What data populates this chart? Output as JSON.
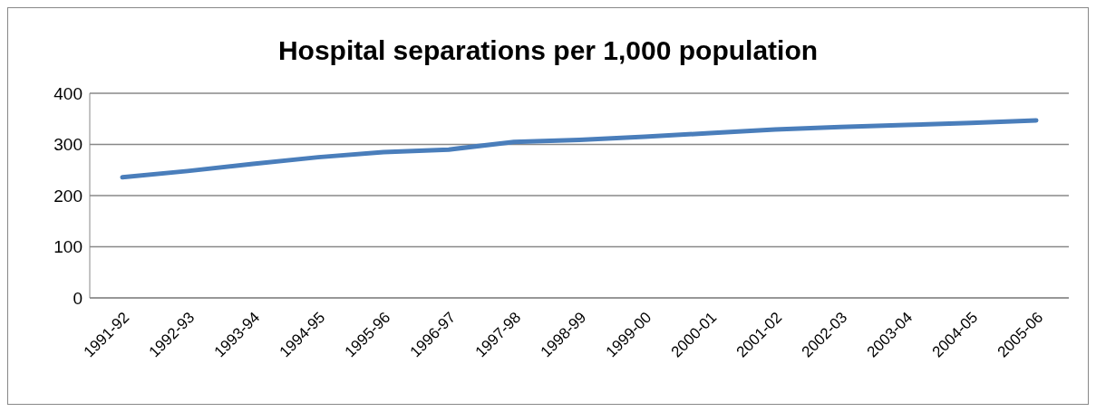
{
  "chart_data": {
    "type": "line",
    "title": "Hospital separations per 1,000 population",
    "categories": [
      "1991-92",
      "1992-93",
      "1993-94",
      "1994-95",
      "1995-96",
      "1996-97",
      "1997-98",
      "1998-99",
      "1999-00",
      "2000-01",
      "2001-02",
      "2002-03",
      "2003-04",
      "2004-05",
      "2005-06"
    ],
    "series": [
      {
        "color": "#4a7ebb",
        "values": [
          236,
          248,
          262,
          275,
          285,
          290,
          305,
          309,
          315,
          322,
          329,
          334,
          338,
          342,
          347
        ]
      }
    ],
    "ylim": [
      0,
      400
    ],
    "yticks": [
      0,
      100,
      200,
      300,
      400
    ],
    "grid": "y",
    "marker": "none",
    "line_style": "solid"
  }
}
